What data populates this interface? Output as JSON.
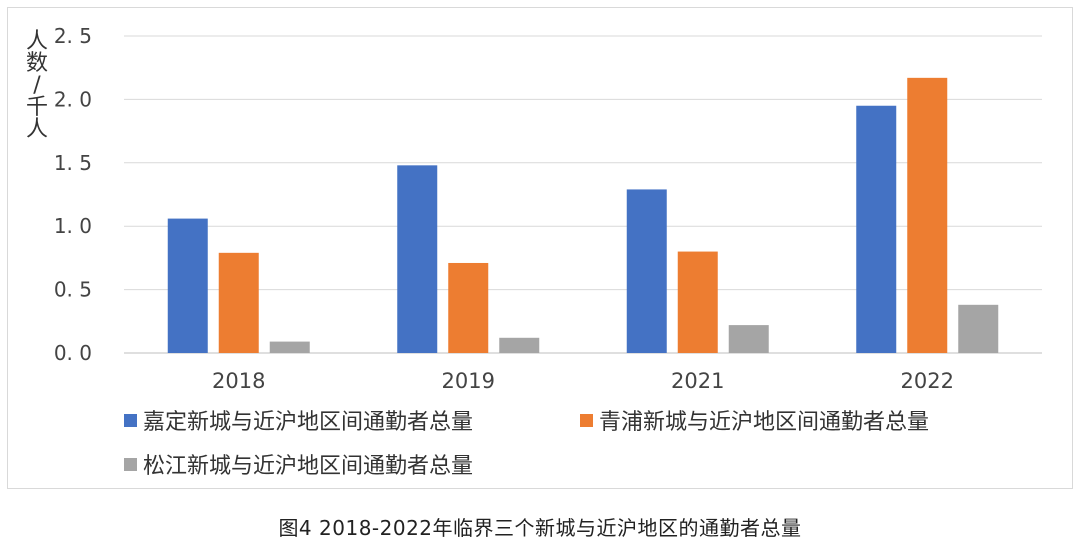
{
  "chart_data": {
    "type": "bar",
    "categories": [
      "2018",
      "2019",
      "2021",
      "2022"
    ],
    "series": [
      {
        "name": "嘉定新城与近沪地区间通勤者总量",
        "color": "#4472c4",
        "values": [
          1.06,
          1.48,
          1.29,
          1.95
        ]
      },
      {
        "name": "青浦新城与近沪地区间通勤者总量",
        "color": "#ed7d31",
        "values": [
          0.79,
          0.71,
          0.8,
          2.17
        ]
      },
      {
        "name": "松江新城与近沪地区间通勤者总量",
        "color": "#a5a5a5",
        "values": [
          0.09,
          0.12,
          0.22,
          0.38
        ]
      }
    ],
    "ylim": [
      0,
      2.5
    ],
    "yticks": [
      "0. 0",
      "0. 5",
      "1. 0",
      "1. 5",
      "2. 0",
      "2. 5"
    ],
    "ylabel": "人数/千人",
    "xlabel": "",
    "grid": true,
    "legend_position": "bottom"
  },
  "caption": "图4  2018-2022年临界三个新城与近沪地区的通勤者总量"
}
